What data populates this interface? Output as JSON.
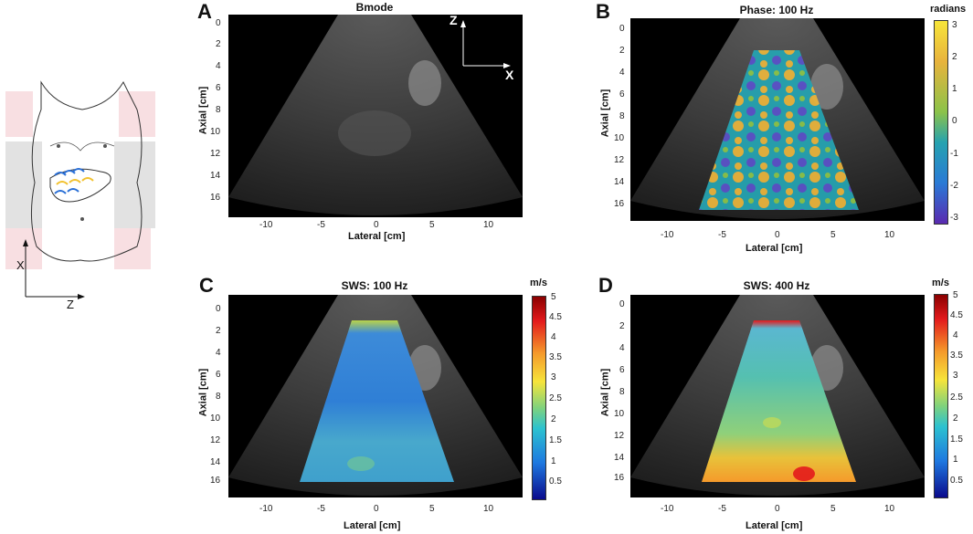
{
  "panels": {
    "A": {
      "letter": "A",
      "title": "Bmode"
    },
    "B": {
      "letter": "B",
      "title": "Phase: 100 Hz",
      "colorbar_unit": "radians",
      "colorbar_ticks": [
        "3",
        "2",
        "1",
        "0",
        "-1",
        "-2",
        "-3"
      ]
    },
    "C": {
      "letter": "C",
      "title": "SWS: 100 Hz",
      "colorbar_unit": "m/s",
      "colorbar_ticks": [
        "5",
        "4.5",
        "4",
        "3.5",
        "3",
        "2.5",
        "2",
        "1.5",
        "1",
        "0.5"
      ]
    },
    "D": {
      "letter": "D",
      "title": "SWS: 400 Hz",
      "colorbar_unit": "m/s",
      "colorbar_ticks": [
        "5",
        "4.5",
        "4",
        "3.5",
        "3",
        "2.5",
        "2",
        "1.5",
        "1",
        "0.5"
      ]
    }
  },
  "axes": {
    "y_label": "Axial [cm]",
    "x_label": "Lateral [cm]",
    "y_ticks": [
      "0",
      "2",
      "4",
      "6",
      "8",
      "10",
      "12",
      "14",
      "16"
    ],
    "x_ticks": [
      "-10",
      "-5",
      "0",
      "5",
      "10"
    ]
  },
  "inset_axes": {
    "z": "Z",
    "x": "X"
  },
  "sketch_axes": {
    "x": "X",
    "z": "Z"
  }
}
